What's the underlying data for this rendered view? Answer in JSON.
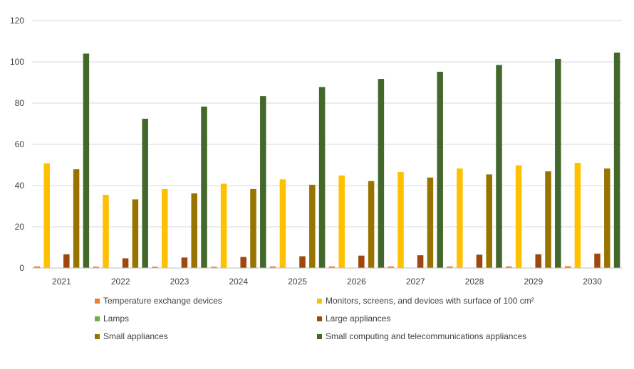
{
  "chart_data": {
    "type": "bar",
    "title": "",
    "xlabel": "",
    "ylabel": "",
    "categories": [
      "2021",
      "2022",
      "2023",
      "2024",
      "2025",
      "2026",
      "2027",
      "2028",
      "2029",
      "2030"
    ],
    "ylim": [
      0,
      120
    ],
    "yticks": [
      0,
      20,
      40,
      60,
      80,
      100,
      120
    ],
    "grid": true,
    "legend_position": "bottom",
    "series": [
      {
        "name": "Temperature exchange devices",
        "color": "#ED7D31",
        "values": [
          0.8,
          0.7,
          0.7,
          0.7,
          0.8,
          0.8,
          0.8,
          0.8,
          0.8,
          0.9
        ]
      },
      {
        "name": "Monitors, screens, and devices with surface of 100 cm²",
        "color": "#FFC000",
        "values": [
          50.8,
          35.5,
          38.3,
          40.9,
          43.0,
          44.9,
          46.6,
          48.3,
          49.8,
          51.0
        ]
      },
      {
        "name": "Lamps",
        "color": "#70AD47",
        "values": [
          0.1,
          0.1,
          0.1,
          0.1,
          0.1,
          0.1,
          0.1,
          0.1,
          0.1,
          0.1
        ]
      },
      {
        "name": "Large appliances",
        "color": "#9E480E",
        "values": [
          6.7,
          4.7,
          5.1,
          5.4,
          5.7,
          6.0,
          6.2,
          6.5,
          6.7,
          7.0
        ]
      },
      {
        "name": "Small appliances",
        "color": "#997300",
        "values": [
          47.9,
          33.3,
          36.2,
          38.3,
          40.4,
          42.2,
          43.9,
          45.4,
          46.9,
          48.3
        ]
      },
      {
        "name": "Small computing and telecommunications appliances",
        "color": "#43682B",
        "values": [
          104.0,
          72.4,
          78.3,
          83.4,
          87.8,
          91.7,
          95.2,
          98.5,
          101.4,
          104.5
        ]
      }
    ]
  }
}
